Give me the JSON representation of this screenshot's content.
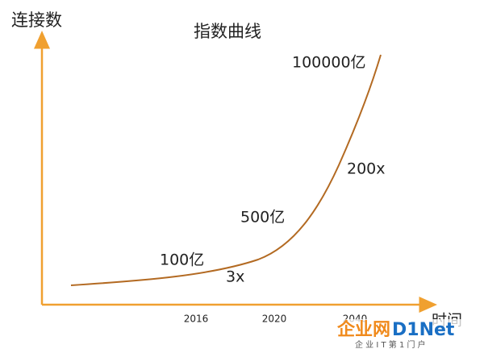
{
  "header": {
    "title": "指数曲线"
  },
  "axes": {
    "y_label": "连接数",
    "x_label": "时间",
    "x_ticks": [
      "2016",
      "2020",
      "2040"
    ]
  },
  "annotations": [
    "100000亿",
    "200x",
    "500亿",
    "100亿",
    "3x"
  ],
  "watermark": {
    "brand_cn": "企业网",
    "brand_en": "D1Net",
    "slogan": "企 业 I T 第 1 门 户"
  }
}
